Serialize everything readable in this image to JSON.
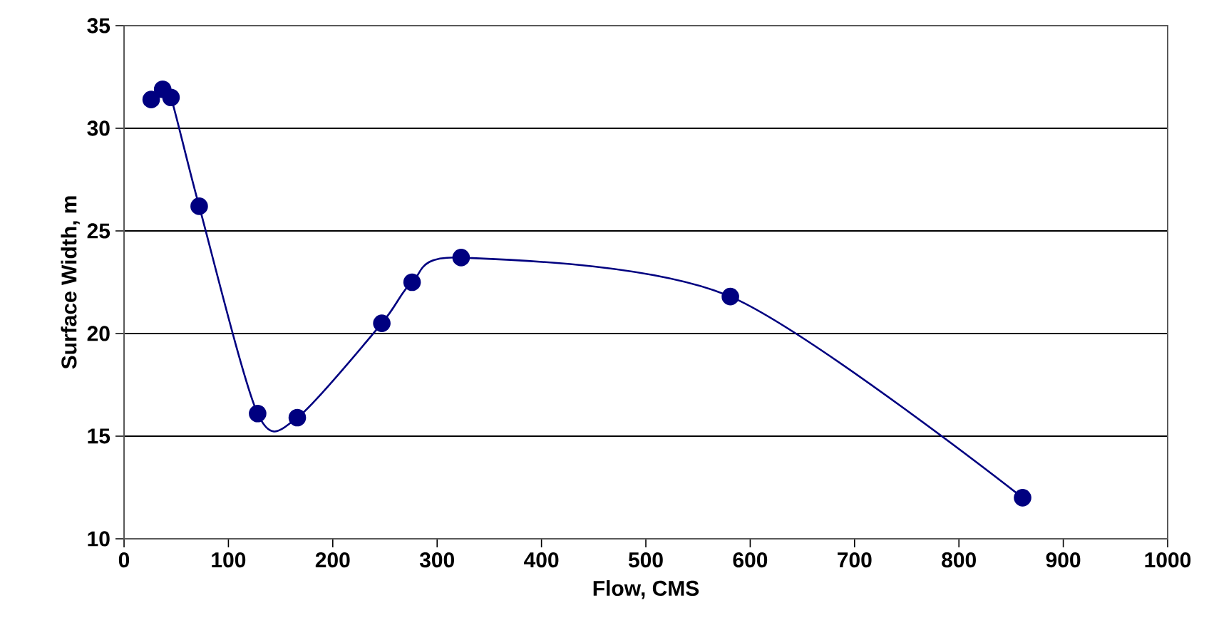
{
  "chart_data": {
    "type": "line",
    "xlabel": "Flow,  CMS",
    "ylabel": "Surface Width, m",
    "x": [
      26,
      37,
      45,
      72,
      128,
      166,
      247,
      276,
      323,
      581,
      861
    ],
    "series": [
      {
        "color": "#000080",
        "values": [
          31.4,
          31.9,
          31.5,
          26.2,
          16.1,
          15.9,
          20.5,
          22.5,
          23.7,
          21.8,
          12.0
        ]
      }
    ],
    "xlim": [
      0,
      1000
    ],
    "xticks": [
      0,
      100,
      200,
      300,
      400,
      500,
      600,
      700,
      800,
      900,
      1000
    ],
    "ylim": [
      10,
      35
    ],
    "yticks": [
      10,
      15,
      20,
      25,
      30,
      35
    ],
    "grid": "y",
    "marker": "circle",
    "line_style": "solid"
  }
}
